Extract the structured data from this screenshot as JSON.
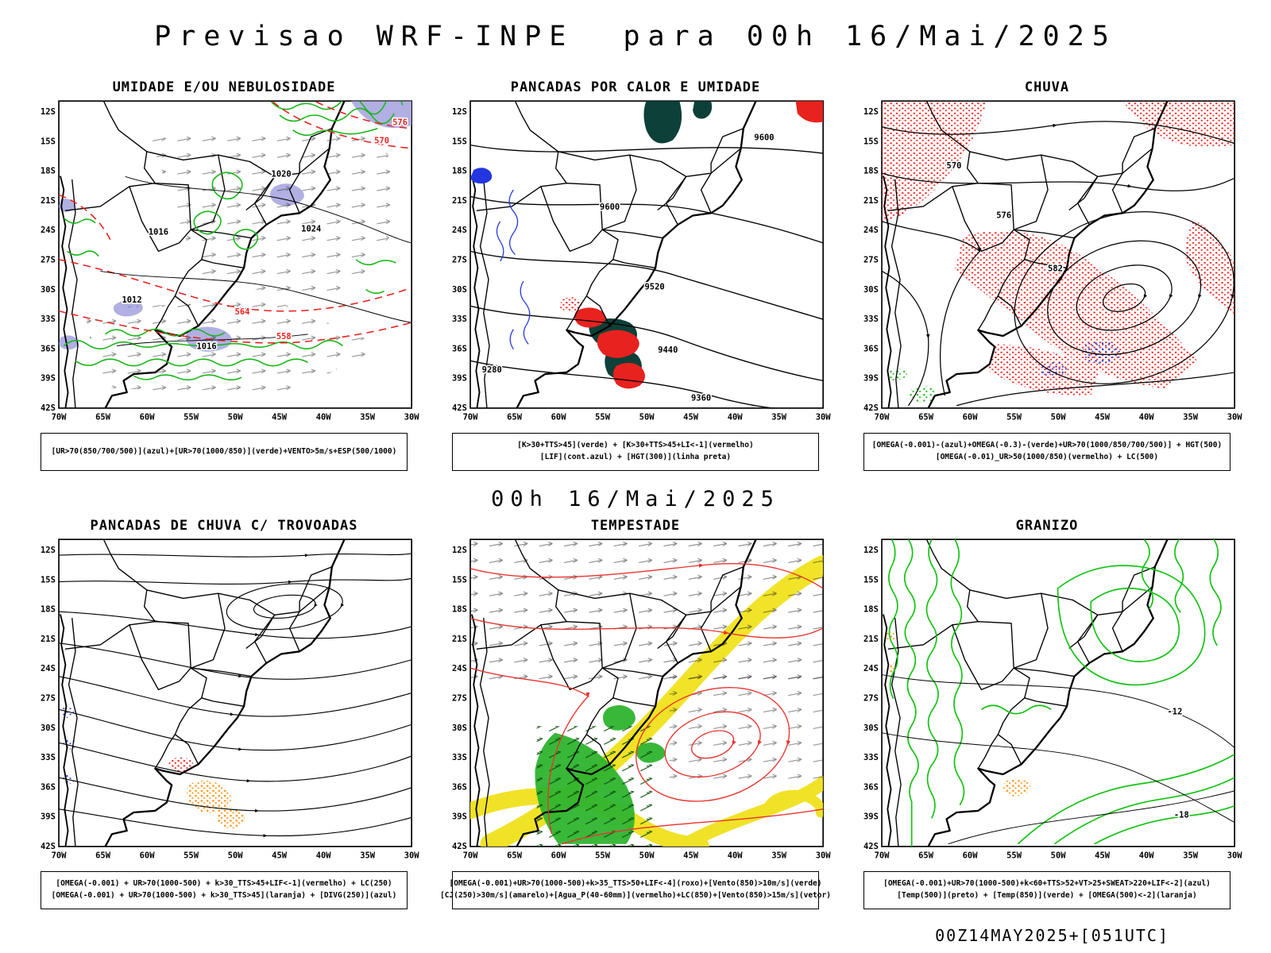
{
  "page": {
    "title": "Previsao WRF-INPE  para 00h 16/Mai/2025",
    "subtitle": "00h 16/Mai/2025",
    "footer": "00Z14MAY2025+[051UTC]"
  },
  "colors": {
    "humidity_green": "#17b617",
    "thickness_red": "#e8221e",
    "upper_blue": "#2336e0",
    "shower_orange": "#ff8c00",
    "cloud_purple": "#a9a7e0",
    "instability_teal": "#0d4038",
    "jet_yellow": "#f0e11c",
    "wind_green": "#2fb42f"
  },
  "axes": {
    "lat_ticks": [
      "12S",
      "15S",
      "18S",
      "21S",
      "24S",
      "27S",
      "30S",
      "33S",
      "36S",
      "39S",
      "42S"
    ],
    "lon_ticks": [
      "70W",
      "65W",
      "60W",
      "55W",
      "50W",
      "45W",
      "40W",
      "35W",
      "30W"
    ]
  },
  "panels": [
    {
      "title": "UMIDADE E/OU NEBULOSIDADE",
      "caption_lines": [
        "[UR>70(850/700/500)](azul)+[UR>70(1000/850)](verde)+VENTO>5m/s+ESP(500/1000)"
      ],
      "map_labels": [
        "1016",
        "1020",
        "1024",
        "1012",
        "1016",
        "558",
        "564",
        "570",
        "576"
      ]
    },
    {
      "title": "PANCADAS POR CALOR E UMIDADE",
      "caption_lines": [
        "[K>30+TTS>45](verde) + [K>30+TTS>45+LI<-1](vermelho)",
        "[LIF](cont.azul) + [HGT(300)](linha preta)"
      ],
      "map_labels": [
        "9600",
        "9600",
        "9520",
        "9440",
        "9360",
        "9280"
      ]
    },
    {
      "title": "CHUVA",
      "caption_lines": [
        "[OMEGA(-0.001)-(azul)+OMEGA(-0.3)-(verde)+UR>70(1000/850/700/500)] + HGT(500)",
        "[OMEGA(-0.01)_UR>50(1000/850)(vermelho) + LC(500)"
      ],
      "map_labels": [
        "570",
        "576",
        "582"
      ]
    },
    {
      "title": "PANCADAS DE CHUVA C/ TROVOADAS",
      "caption_lines": [
        "[OMEGA(-0.001) + UR>70(1000-500) + k>30_TTS>45+LIF<-1](vermelho) + LC(250)",
        "[OMEGA(-0.001) + UR>70(1000-500) + k>30_TTS>45](laranja) + [DIVG(250)](azul)"
      ],
      "map_labels": []
    },
    {
      "title": "TEMPESTADE",
      "caption_lines": [
        "[OMEGA(-0.001)+UR>70(1000-500)+k>35_TTS>50+LIF<-4](roxo)+[Vento(850)>10m/s](verde)",
        "[CJ(250)>30m/s](amarelo)+[Agua_P(40-60mm)](vermelho)+LC(850)+[Vento(850)>15m/s](vetor)"
      ],
      "map_labels": []
    },
    {
      "title": "GRANIZO",
      "caption_lines": [
        "[OMEGA(-0.001)+UR>70(1000-500)+k<60+TTS>52+VT>25+SWEAT>220+LIF<-2](azul)",
        "[Temp(500)](preto) + [Temp(850)](verde) + [OMEGA(500)<-2](laranja)"
      ],
      "map_labels": [
        "-12",
        "-18"
      ]
    }
  ]
}
